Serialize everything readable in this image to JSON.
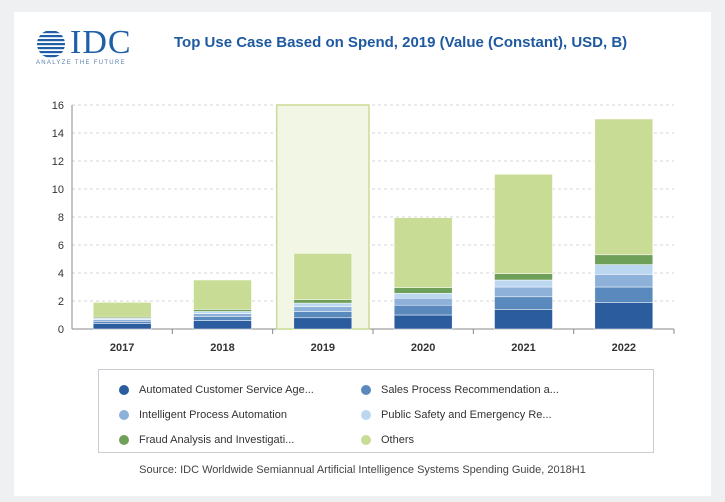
{
  "logo": {
    "text": "IDC",
    "tagline": "ANALYZE THE FUTURE"
  },
  "header": {
    "title": "Top Use Case Based on Spend, 2019 (Value (Constant), USD, B)"
  },
  "footer": {
    "source": "Source: IDC Worldwide Semiannual Artificial Intelligence Systems Spending Guide, 2018H1"
  },
  "chart_data": {
    "type": "bar",
    "stacked": true,
    "title": "Top Use Case Based on Spend, 2019 (Value (Constant), USD, B)",
    "categories": [
      "2017",
      "2018",
      "2019",
      "2020",
      "2021",
      "2022"
    ],
    "highlighted_category": "2019",
    "ylim": [
      0,
      16
    ],
    "yticks": [
      0,
      2,
      4,
      6,
      8,
      10,
      12,
      14,
      16
    ],
    "grid": true,
    "legend_position": "bottom",
    "series": [
      {
        "name": "Automated Customer Service Age...",
        "color": "#2b5c9e",
        "values": [
          0.4,
          0.6,
          0.8,
          1.0,
          1.4,
          1.9
        ]
      },
      {
        "name": "Sales Process Recommendation a...",
        "color": "#5a8abd",
        "values": [
          0.15,
          0.3,
          0.45,
          0.7,
          0.9,
          1.1
        ]
      },
      {
        "name": "Intelligent Process Automation",
        "color": "#8db1d9",
        "values": [
          0.12,
          0.2,
          0.35,
          0.5,
          0.7,
          0.9
        ]
      },
      {
        "name": "Public Safety and Emergency Re...",
        "color": "#bcd8f0",
        "values": [
          0.1,
          0.15,
          0.25,
          0.35,
          0.5,
          0.7
        ]
      },
      {
        "name": "Fraud Analysis and Investigati...",
        "color": "#6fa05a",
        "values": [
          0.08,
          0.15,
          0.25,
          0.4,
          0.45,
          0.7
        ]
      },
      {
        "name": "Others",
        "color": "#c9dc96",
        "values": [
          1.05,
          2.1,
          3.3,
          5.0,
          7.1,
          9.7
        ]
      }
    ]
  }
}
